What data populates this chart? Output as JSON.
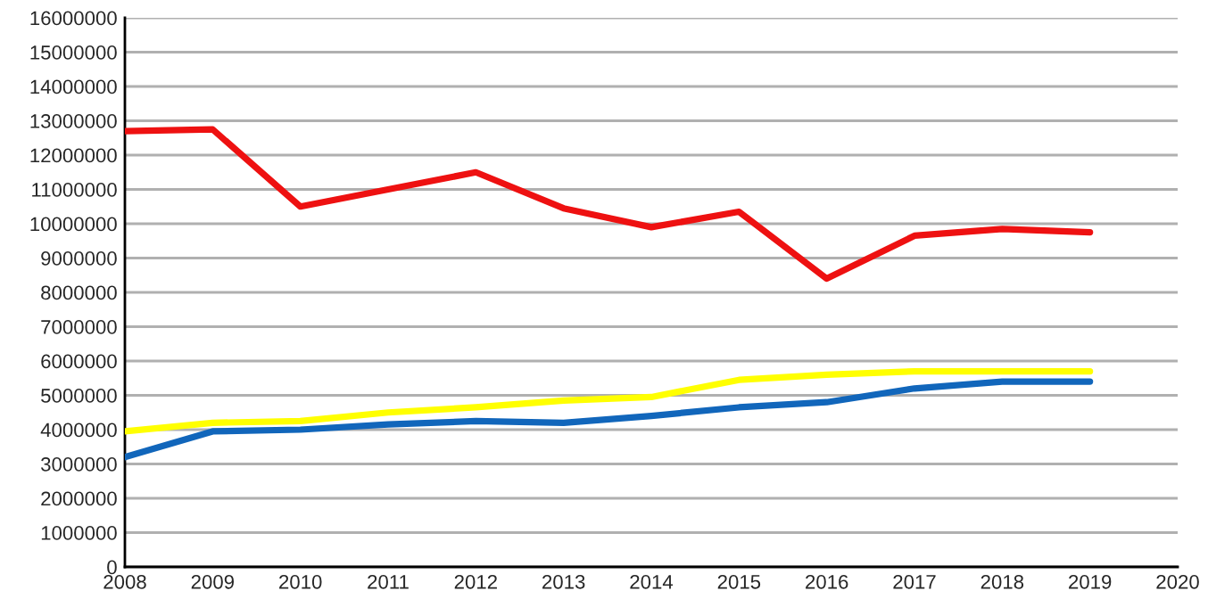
{
  "chart_data": {
    "type": "line",
    "x": [
      2008,
      2009,
      2010,
      2011,
      2012,
      2013,
      2014,
      2015,
      2016,
      2017,
      2018,
      2019
    ],
    "series": [
      {
        "color": "#ee1111",
        "values": [
          12700000,
          12750000,
          10500000,
          11000000,
          11500000,
          10450000,
          9900000,
          10350000,
          8400000,
          9650000,
          9850000,
          9750000
        ]
      },
      {
        "color": "#ffff00",
        "values": [
          3950000,
          4200000,
          4250000,
          4500000,
          4650000,
          4850000,
          4950000,
          5450000,
          5600000,
          5700000,
          5700000,
          5700000
        ]
      },
      {
        "color": "#1166bb",
        "values": [
          3200000,
          3950000,
          4000000,
          4150000,
          4250000,
          4200000,
          4400000,
          4650000,
          4800000,
          5200000,
          5400000,
          5400000
        ]
      }
    ],
    "xlim": [
      2008,
      2020
    ],
    "xticks": [
      2008,
      2009,
      2010,
      2011,
      2012,
      2013,
      2014,
      2015,
      2016,
      2017,
      2018,
      2019,
      2020
    ],
    "ylim": [
      0,
      16000000
    ],
    "yticks": [
      0,
      1000000,
      2000000,
      3000000,
      4000000,
      5000000,
      6000000,
      7000000,
      8000000,
      9000000,
      10000000,
      11000000,
      12000000,
      13000000,
      14000000,
      15000000,
      16000000
    ],
    "grid": "y",
    "marker": "none",
    "line_style": "solid"
  }
}
